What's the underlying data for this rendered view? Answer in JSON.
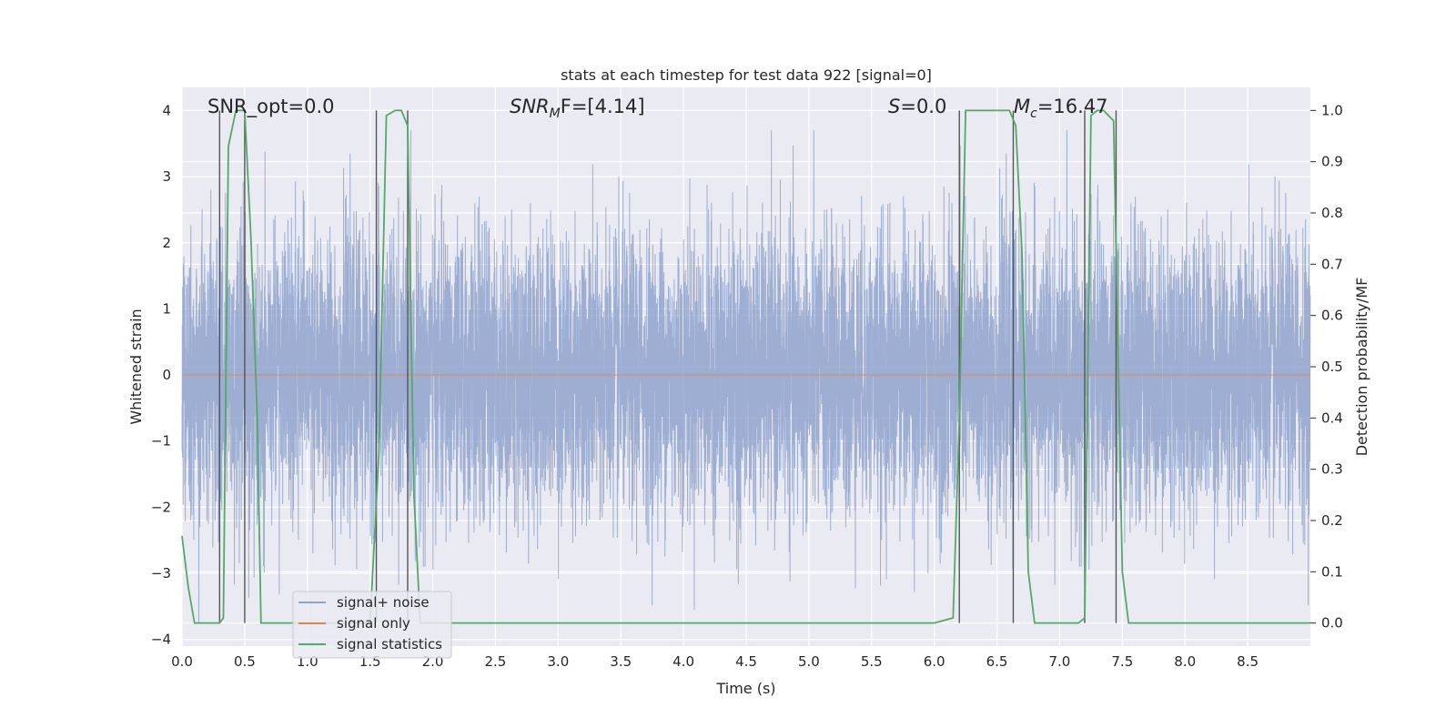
{
  "chart_data": {
    "type": "line",
    "title": "stats at each timestep for test data 922 [signal=0]",
    "xlabel": "Time (s)",
    "ylabel_left": "Whitened strain",
    "ylabel_right": "Detection probability/MF",
    "xlim": [
      0,
      9.0
    ],
    "ylim_left": [
      -4.1,
      4.35
    ],
    "ylim_right": [
      -0.045,
      1.045
    ],
    "x_ticks": [
      "0.0",
      "0.5",
      "1.0",
      "1.5",
      "2.0",
      "2.5",
      "3.0",
      "3.5",
      "4.0",
      "4.5",
      "5.0",
      "5.5",
      "6.0",
      "6.5",
      "7.0",
      "7.5",
      "8.0",
      "8.5"
    ],
    "y_ticks_left": [
      "4",
      "3",
      "2",
      "1",
      "0",
      "−1",
      "−2",
      "−3",
      "−4"
    ],
    "y_ticks_right": [
      "1.0",
      "0.9",
      "0.8",
      "0.7",
      "0.6",
      "0.5",
      "0.4",
      "0.3",
      "0.2",
      "0.1",
      "0.0"
    ],
    "grid": true,
    "legend_position": "lower-left",
    "annotations": {
      "snr_opt": "SNR_opt=0.0",
      "snr_mf_main": "SNR",
      "snr_mf_sub": "M",
      "snr_mf_rest": "F=[4.14]",
      "s_main": "S",
      "s_rest": "=0.0",
      "mc_main": "M",
      "mc_sub": "c",
      "mc_rest": "=16.47"
    },
    "series": [
      {
        "name": "signal+ noise",
        "color": "#8fa3cc",
        "description_values": "whitened noise, roughly gaussian, amplitude within about ±3.5",
        "sample_rate_hz": 1000,
        "duration_s": 9.0
      },
      {
        "name": "signal only",
        "color": "#dd8452",
        "constant_value": 0
      },
      {
        "name": "signal statistics",
        "color": "#55a868",
        "x": [
          0.0,
          0.05,
          0.1,
          0.2,
          0.3,
          0.33,
          0.37,
          0.43,
          0.5,
          0.55,
          0.6,
          0.63,
          0.7,
          1.0,
          1.5,
          1.57,
          1.63,
          1.7,
          1.75,
          1.8,
          1.85,
          1.9,
          2.0,
          3.0,
          4.0,
          5.0,
          6.0,
          6.15,
          6.2,
          6.25,
          6.6,
          6.65,
          6.7,
          6.75,
          6.8,
          7.0,
          7.15,
          7.2,
          7.25,
          7.3,
          7.35,
          7.43,
          7.5,
          7.55,
          7.6,
          8.0,
          9.0
        ],
        "y": [
          0.17,
          0.07,
          0.0,
          0.0,
          0.0,
          0.01,
          0.93,
          1.0,
          1.0,
          0.75,
          0.4,
          0.0,
          0.0,
          0.0,
          0.0,
          0.33,
          0.99,
          1.0,
          1.0,
          0.97,
          0.25,
          0.0,
          0.0,
          0.0,
          0.0,
          0.0,
          0.0,
          0.01,
          0.4,
          1.0,
          1.0,
          0.97,
          0.72,
          0.1,
          0.0,
          0.0,
          0.0,
          0.01,
          0.99,
          1.0,
          1.0,
          0.98,
          0.1,
          0.0,
          0.0,
          0.0,
          0.0
        ]
      }
    ],
    "vertical_markers_x": [
      0.3,
      0.5,
      1.55,
      1.8,
      6.2,
      6.63,
      7.2,
      7.45
    ]
  },
  "legend": {
    "items": [
      {
        "label": "signal+ noise",
        "color": "#8fa3cc"
      },
      {
        "label": "signal only",
        "color": "#dd8452"
      },
      {
        "label": "signal statistics",
        "color": "#55a868"
      }
    ]
  }
}
